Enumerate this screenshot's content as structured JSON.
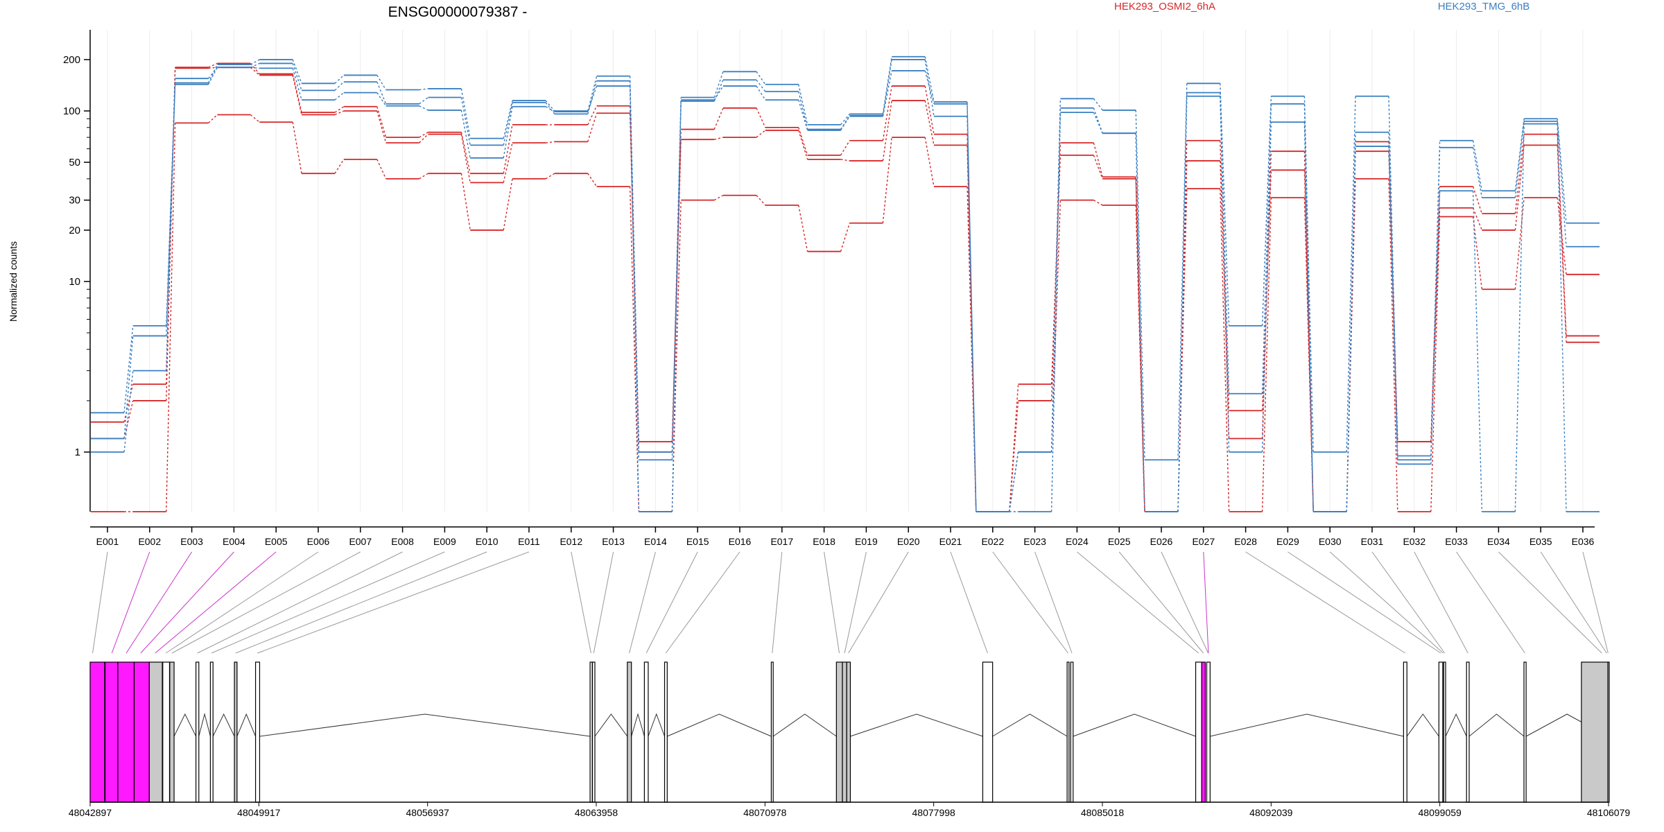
{
  "chart_data": {
    "type": "line",
    "title": "ENSG00000079387 -",
    "ylabel": "Normalized counts",
    "y_scale": "log",
    "y_ticks": [
      1,
      10,
      20,
      30,
      50,
      100,
      200
    ],
    "y_tick_labels": [
      "1",
      "10",
      "20",
      "30",
      "50",
      "100",
      "200"
    ],
    "exons": [
      "E001",
      "E002",
      "E003",
      "E004",
      "E005",
      "E006",
      "E007",
      "E008",
      "E009",
      "E010",
      "E011",
      "E012",
      "E013",
      "E014",
      "E015",
      "E016",
      "E017",
      "E018",
      "E019",
      "E020",
      "E021",
      "E022",
      "E023",
      "E024",
      "E025",
      "E026",
      "E027",
      "E028",
      "E029",
      "E030",
      "E031",
      "E032",
      "E033",
      "E034",
      "E035",
      "E036"
    ],
    "legend": [
      {
        "name": "HEK293_OSMI2_6hA",
        "color": "#d62728"
      },
      {
        "name": "HEK293_TMG_6hB",
        "color": "#3a7fc1"
      }
    ],
    "series": [
      {
        "group": "HEK293_OSMI2_6hA",
        "color": "#d62728",
        "values": [
          1.2,
          2.0,
          180,
          190,
          165,
          98,
          106,
          70,
          75,
          43,
          83,
          83,
          107,
          1.15,
          78,
          104,
          80,
          55,
          67,
          140,
          73,
          0.4,
          2.0,
          65,
          41,
          0.4,
          67,
          1.2,
          58,
          0.4,
          66,
          1.15,
          36,
          25,
          73,
          4.8
        ]
      },
      {
        "group": "HEK293_OSMI2_6hA",
        "color": "#d62728",
        "values": [
          1.5,
          2.5,
          178,
          180,
          162,
          95,
          100,
          65,
          73,
          38,
          65,
          66,
          97,
          1.0,
          68,
          70,
          77,
          52,
          51,
          115,
          63,
          0.4,
          2.5,
          55,
          40,
          0.4,
          51,
          1.75,
          45,
          0.4,
          58,
          1.15,
          27,
          20,
          63,
          4.4
        ]
      },
      {
        "group": "HEK293_OSMI2_6hA",
        "color": "#d62728",
        "values": [
          0.4,
          0.4,
          85,
          95,
          86,
          43,
          52,
          40,
          43,
          20,
          40,
          43,
          36,
          0.4,
          30,
          32,
          28,
          15,
          22,
          70,
          36,
          0.4,
          1.0,
          30,
          28,
          0.4,
          35,
          0.4,
          31,
          0.4,
          40,
          0.4,
          24,
          9,
          31,
          11
        ]
      },
      {
        "group": "HEK293_TMG_6hB",
        "color": "#3a7fc1",
        "values": [
          1.7,
          5.5,
          146,
          187,
          200,
          145,
          162,
          133,
          135,
          69,
          115,
          100,
          160,
          1.0,
          120,
          170,
          143,
          83,
          96,
          208,
          113,
          0.4,
          1.0,
          118,
          101,
          0.9,
          145,
          5.5,
          122,
          1.0,
          122,
          0.95,
          67,
          34,
          90,
          22
        ]
      },
      {
        "group": "HEK293_TMG_6hB",
        "color": "#3a7fc1",
        "values": [
          1.2,
          4.8,
          143,
          180,
          190,
          132,
          148,
          110,
          120,
          63,
          112,
          96,
          150,
          0.9,
          114,
          152,
          130,
          78,
          94,
          200,
          93,
          0.4,
          1.0,
          104,
          74,
          0.4,
          128,
          2.2,
          110,
          0.4,
          75,
          0.9,
          61,
          31,
          87,
          16
        ]
      },
      {
        "group": "HEK293_TMG_6hB",
        "color": "#3a7fc1",
        "values": [
          1.0,
          3.0,
          155,
          180,
          178,
          116,
          128,
          107,
          101,
          53,
          106,
          99,
          140,
          0.4,
          116,
          140,
          116,
          77,
          93,
          172,
          110,
          0.4,
          0.4,
          98,
          74,
          0.4,
          122,
          1.0,
          86,
          0.4,
          62,
          0.85,
          34,
          0.4,
          84,
          0.4
        ]
      }
    ],
    "genomic_axis_labels": [
      "48042897",
      "48049917",
      "48056937",
      "48063958",
      "48070978",
      "48077998",
      "48085018",
      "48092039",
      "48099059",
      "48106079"
    ],
    "genomic_range": [
      48042897,
      48106079
    ],
    "highlight_exons": [
      "E002",
      "E003",
      "E004",
      "E005",
      "E027"
    ]
  }
}
